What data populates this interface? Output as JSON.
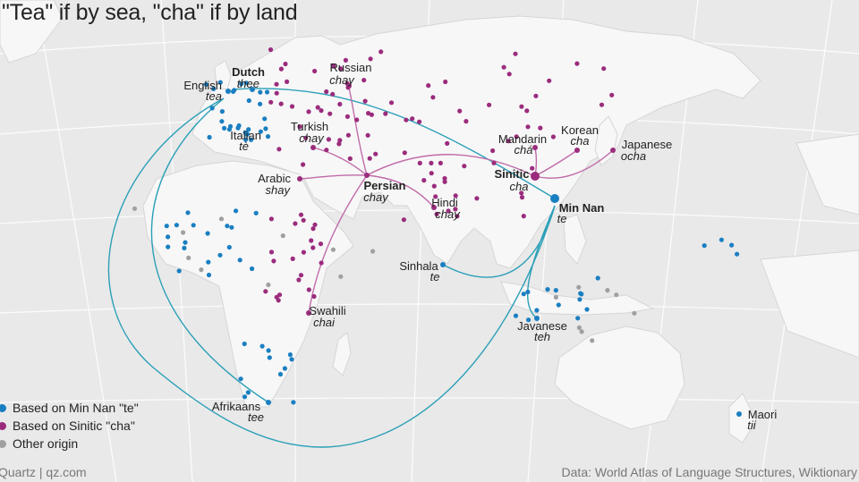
{
  "title": "\"Tea\" if by sea, \"cha\" if by land",
  "colors": {
    "min_nan": "#1a7fc1",
    "sinitic": "#9b2c7d",
    "other": "#a0a0a0",
    "land": "#f7f7f7",
    "sea": "#e9e9e9",
    "route_sea": "#2a9fb7",
    "route_land": "#c06aa8"
  },
  "legend": [
    {
      "label": "Based on Min Nan \"te\"",
      "color": "#1a7fc1"
    },
    {
      "label": "Based on Sinitic \"cha\"",
      "color": "#9b2c7d"
    },
    {
      "label": "Other origin",
      "color": "#a0a0a0"
    }
  ],
  "languages": [
    {
      "name": "English",
      "word": "tea",
      "origin": "min_nan"
    },
    {
      "name": "Dutch",
      "word": "thee",
      "origin": "min_nan"
    },
    {
      "name": "Italian",
      "word": "tè",
      "origin": "min_nan"
    },
    {
      "name": "Russian",
      "word": "chay",
      "origin": "sinitic"
    },
    {
      "name": "Turkish",
      "word": "chay",
      "origin": "sinitic"
    },
    {
      "name": "Arabic",
      "word": "shay",
      "origin": "sinitic"
    },
    {
      "name": "Persian",
      "word": "chay",
      "origin": "sinitic"
    },
    {
      "name": "Hindi",
      "word": "chay",
      "origin": "sinitic"
    },
    {
      "name": "Mandarin",
      "word": "chá",
      "origin": "sinitic"
    },
    {
      "name": "Sinitic",
      "word": "cha",
      "origin": "sinitic"
    },
    {
      "name": "Korean",
      "word": "cha",
      "origin": "sinitic"
    },
    {
      "name": "Japanese",
      "word": "ocha",
      "origin": "sinitic"
    },
    {
      "name": "Min Nan",
      "word": "te",
      "origin": "min_nan"
    },
    {
      "name": "Sinhala",
      "word": "te",
      "origin": "min_nan"
    },
    {
      "name": "Swahili",
      "word": "chai",
      "origin": "sinitic"
    },
    {
      "name": "Javanese",
      "word": "teh",
      "origin": "min_nan"
    },
    {
      "name": "Afrikaans",
      "word": "tee",
      "origin": "min_nan"
    },
    {
      "name": "Maori",
      "word": "tii",
      "origin": "min_nan"
    }
  ],
  "footer": {
    "source": "Quartz | qz.com",
    "credit": "Data: World Atlas of Language Structures, Wiktionary"
  }
}
